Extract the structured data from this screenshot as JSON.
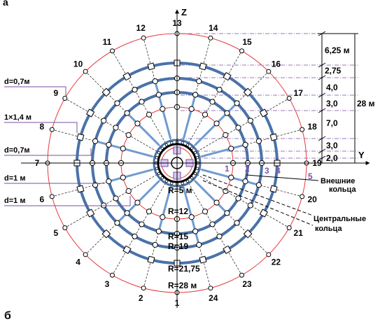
{
  "panel_label_top": "а",
  "panel_label_bottom": "б",
  "axes": {
    "vertical": "Z",
    "horizontal": "Y"
  },
  "radius_labels": [
    "R=5 м",
    "R=12",
    "R=15",
    "R=19",
    "R=21,75",
    "R=28 м"
  ],
  "ray_numbers": [
    "1",
    "2",
    "3",
    "4",
    "5",
    "6",
    "7",
    "8",
    "9",
    "10",
    "11",
    "12",
    "13",
    "14",
    "15",
    "16",
    "17",
    "18",
    "19",
    "20",
    "21",
    "22",
    "23",
    "24"
  ],
  "ring_numbers": [
    "1",
    "2",
    "3",
    "4",
    "5"
  ],
  "callouts": {
    "outer_rings": [
      "Внешние",
      "кольца"
    ],
    "central_rings": [
      "Центральные",
      "кольца"
    ]
  },
  "left_dimensions": [
    "d=0,7м",
    "1×1,4 м",
    "d=0,7м",
    "d=1 м",
    "d=1 м"
  ],
  "right_dimensions": [
    "6,25 м",
    "2,75",
    "4,0",
    "3,0",
    "7,0",
    "3,0",
    "2,0"
  ],
  "total_height_label": "28 м",
  "colors": {
    "red_circle": "#e8393c",
    "thick_ring": "#4a72a8",
    "spoke_blue": "#6f9bd0",
    "dash_line": "#333333",
    "dashdot_line": "#7a4fa0",
    "ring_number": "#7b54b0"
  }
}
